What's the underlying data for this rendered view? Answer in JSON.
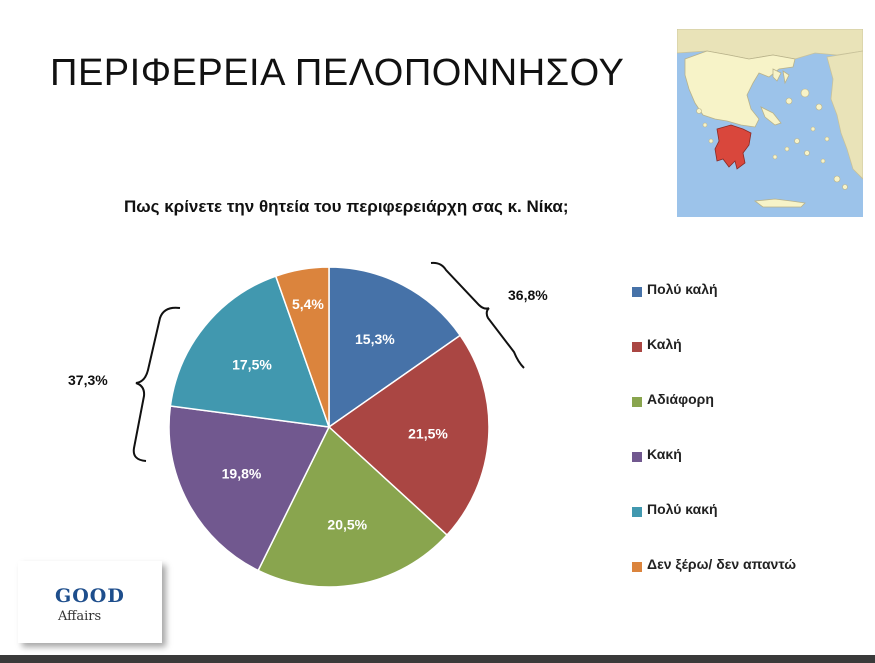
{
  "slide": {
    "title": "ΠΕΡΙΦΕΡΕΙΑ ΠΕΛΟΠΟΝΝΗΣΟΥ"
  },
  "chart_data": {
    "type": "pie",
    "title": "Πως κρίνετε την θητεία του περιφερειάρχη σας κ. Νίκα;",
    "slices": [
      {
        "label": "Πολύ καλή",
        "value": 15.3,
        "text": "15,3%",
        "color": "#4672a8"
      },
      {
        "label": "Καλή",
        "value": 21.5,
        "text": "21,5%",
        "color": "#aa4643"
      },
      {
        "label": "Αδιάφορη",
        "value": 20.5,
        "text": "20,5%",
        "color": "#89a54e"
      },
      {
        "label": "Κακή",
        "value": 19.8,
        "text": "19,8%",
        "color": "#71588f"
      },
      {
        "label": "Πολύ κακή",
        "value": 17.5,
        "text": "17,5%",
        "color": "#4198af"
      },
      {
        "label": "Δεν ξέρω/ δεν απαντώ",
        "value": 5.4,
        "text": "5,4%",
        "color": "#db843d"
      }
    ],
    "annotations": [
      {
        "text": "36,8%",
        "groups": [
          "Πολύ καλή",
          "Καλή"
        ],
        "side": "right"
      },
      {
        "text": "37,3%",
        "groups": [
          "Κακή",
          "Πολύ κακή"
        ],
        "side": "left"
      }
    ],
    "legend_position": "right"
  },
  "map": {
    "highlight_color": "#d9473c",
    "land_color": "#f7f3c8",
    "sea_color": "#9cc3ea"
  },
  "logo": {
    "word1": "GOOD",
    "word2": "Affairs"
  }
}
